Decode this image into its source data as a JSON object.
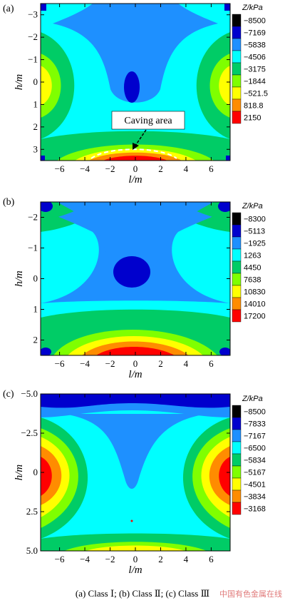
{
  "caption": "(a) Class Ⅰ; (b) Class Ⅱ; (c) Class Ⅲ",
  "watermark": "中国有色金属在线",
  "chart_data": [
    {
      "type": "heatmap",
      "panel_label": "(a)",
      "xlabel": "l/m",
      "ylabel": "h/m",
      "x_ticks": [
        "−6",
        "−4",
        "−2",
        "0",
        "2",
        "4",
        "6"
      ],
      "y_ticks": [
        "−3",
        "−2",
        "−1",
        "0",
        "1",
        "2",
        "3"
      ],
      "xlim": [
        -7.5,
        7.5
      ],
      "ylim": [
        -3.5,
        3.5
      ],
      "legend_title": "Z/kPa",
      "levels": [
        "−8500",
        "−7169",
        "−5838",
        "−4506",
        "−3175",
        "−1844",
        "−521.5",
        "818.8",
        "2150"
      ],
      "annotation": "Caving area"
    },
    {
      "type": "heatmap",
      "panel_label": "(b)",
      "xlabel": "l/m",
      "ylabel": "h/m",
      "x_ticks": [
        "−6",
        "−4",
        "−2",
        "0",
        "2",
        "4",
        "6"
      ],
      "y_ticks": [
        "−2",
        "−1",
        "0",
        "1",
        "2"
      ],
      "xlim": [
        -7.5,
        7.5
      ],
      "ylim": [
        -2.5,
        2.5
      ],
      "legend_title": "Z/kPa",
      "levels": [
        "−8300",
        "−5113",
        "−1925",
        "1263",
        "4450",
        "7638",
        "10830",
        "14010",
        "17200"
      ]
    },
    {
      "type": "heatmap",
      "panel_label": "(c)",
      "xlabel": "l/m",
      "ylabel": "h/m",
      "x_ticks": [
        "−6",
        "−4",
        "−2",
        "0",
        "2",
        "4",
        "6"
      ],
      "y_ticks": [
        "−5.0",
        "−2.5",
        "0",
        "2.5",
        "5.0"
      ],
      "xlim": [
        -7.5,
        7.5
      ],
      "ylim": [
        -5.0,
        5.0
      ],
      "legend_title": "Z/kPa",
      "levels": [
        "−8500",
        "−7833",
        "−7167",
        "−6500",
        "−5834",
        "−5167",
        "−4501",
        "−3834",
        "−3168"
      ]
    }
  ],
  "colors": [
    "#000000",
    "#0000cd",
    "#1e90ff",
    "#00ffff",
    "#00cc66",
    "#7fff00",
    "#ffff00",
    "#ff8c00",
    "#ff0000"
  ]
}
